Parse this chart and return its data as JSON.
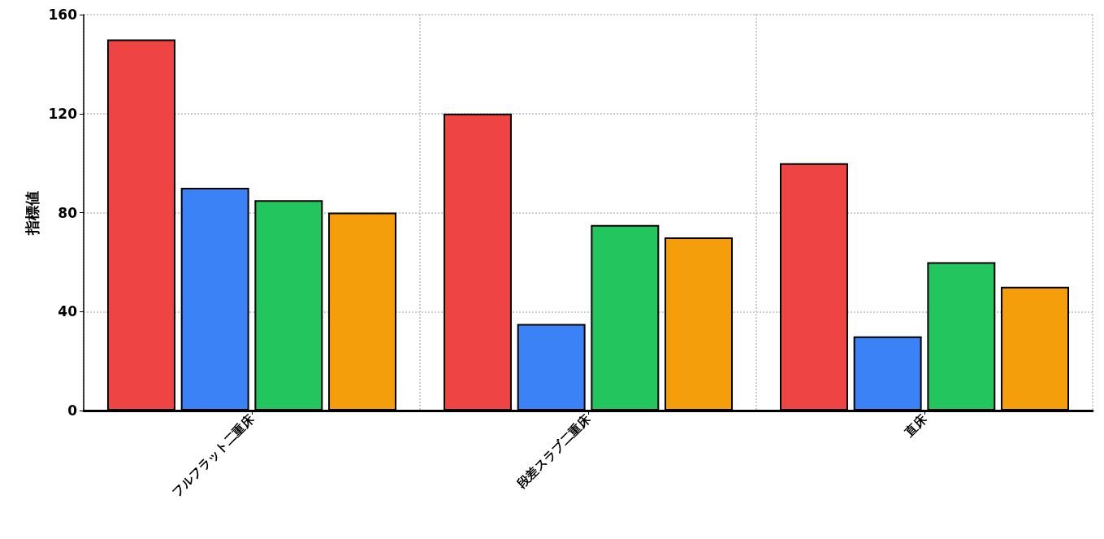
{
  "chart_data": {
    "type": "bar",
    "ylabel": "指標値",
    "categories": [
      "フルフラット二重床",
      "段差スラブ二重床",
      "直床"
    ],
    "series": [
      {
        "color": "#ef4444",
        "values": [
          150,
          120,
          100
        ]
      },
      {
        "color": "#3b82f6",
        "values": [
          90,
          35,
          30
        ]
      },
      {
        "color": "#22c55e",
        "values": [
          85,
          75,
          60
        ]
      },
      {
        "color": "#f59e0b",
        "values": [
          80,
          70,
          50
        ]
      }
    ],
    "ylim": [
      0,
      160
    ],
    "yticks": [
      0,
      40,
      80,
      120,
      160
    ],
    "grid": true
  }
}
